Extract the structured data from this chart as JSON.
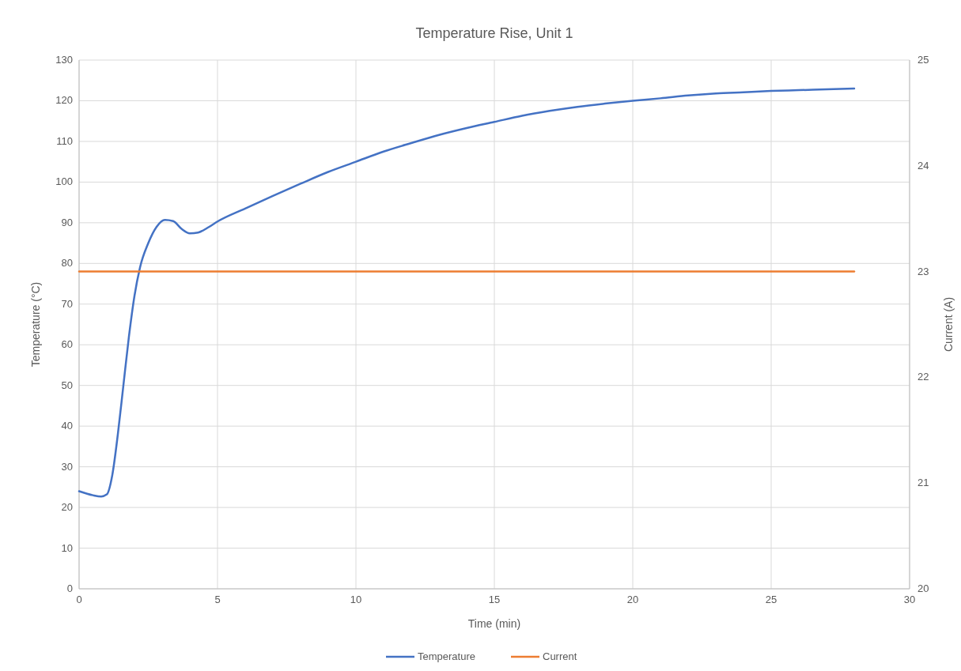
{
  "chart_data": {
    "type": "line",
    "title": "Temperature Rise, Unit 1",
    "xlabel": "Time (min)",
    "ylabel": "Temperature (°C)",
    "y2label": "Current (A)",
    "xlim": [
      0,
      30
    ],
    "xticks": [
      0,
      5,
      10,
      15,
      20,
      25,
      30
    ],
    "ylim": [
      0,
      130
    ],
    "yticks": [
      0,
      10,
      20,
      30,
      40,
      50,
      60,
      70,
      80,
      90,
      100,
      110,
      120,
      130
    ],
    "y2lim": [
      20,
      25
    ],
    "y2ticks": [
      20,
      21,
      22,
      23,
      24,
      25
    ],
    "grid": true,
    "legend": "bottom",
    "line_style": "solid",
    "marker": "none",
    "series": [
      {
        "name": "Temperature",
        "color": "#4472c4",
        "x": [
          0,
          0.5,
          0.8,
          1.0,
          1.2,
          1.4,
          1.6,
          1.8,
          2.0,
          2.2,
          2.5,
          2.8,
          3.1,
          3.4,
          3.7,
          4.0,
          4.3,
          4.7,
          5,
          6,
          7,
          8,
          9,
          10,
          11,
          12,
          13,
          14,
          15,
          16,
          17,
          18,
          19,
          20,
          21,
          22,
          23,
          24,
          25,
          26,
          27,
          28
        ],
        "values": [
          24,
          23,
          22.7,
          23.2,
          28,
          38,
          50,
          62,
          72,
          79,
          85,
          89,
          90.7,
          90.4,
          88.5,
          87.4,
          87.6,
          89,
          90.3,
          93.5,
          96.6,
          99.6,
          102.5,
          105,
          107.5,
          109.6,
          111.6,
          113.3,
          114.8,
          116.3,
          117.5,
          118.5,
          119.3,
          120,
          120.6,
          121.3,
          121.8,
          122.1,
          122.4,
          122.6,
          122.8,
          123
        ]
      },
      {
        "name": "Current",
        "color": "#ed7d31",
        "axis": "y2",
        "x": [
          0,
          28
        ],
        "values": [
          23,
          23
        ]
      }
    ]
  }
}
